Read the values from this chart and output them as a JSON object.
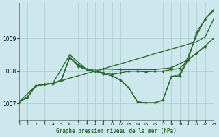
{
  "background_color": "#cce8ec",
  "grid_color": "#b0c8cc",
  "line_color": "#2d6a2d",
  "title": "Graphe pression niveau de la mer (hPa)",
  "xlim": [
    0,
    23
  ],
  "ylim": [
    1006.5,
    1010.1
  ],
  "yticks": [
    1007,
    1008,
    1009
  ],
  "xticks": [
    0,
    1,
    2,
    3,
    4,
    5,
    6,
    7,
    8,
    9,
    10,
    11,
    12,
    13,
    14,
    15,
    16,
    17,
    18,
    19,
    20,
    21,
    22,
    23
  ],
  "series": [
    {
      "x": [
        0,
        1,
        2,
        3,
        4,
        5,
        6,
        7,
        8,
        9,
        10,
        11,
        12,
        13,
        14,
        15,
        16,
        17,
        18,
        19,
        20,
        21,
        22,
        23
      ],
      "y": [
        1007.05,
        1007.18,
        1007.55,
        1007.6,
        1007.62,
        1007.7,
        1007.78,
        1007.85,
        1007.93,
        1008.0,
        1008.07,
        1008.15,
        1008.22,
        1008.3,
        1008.38,
        1008.45,
        1008.53,
        1008.6,
        1008.68,
        1008.75,
        1008.83,
        1008.9,
        1009.05,
        1009.6
      ],
      "marker": false,
      "linewidth": 1.0
    },
    {
      "x": [
        0,
        2,
        4,
        6,
        8,
        10,
        12,
        14,
        16,
        18,
        20,
        22
      ],
      "y": [
        1007.05,
        1007.55,
        1007.62,
        1008.5,
        1008.05,
        1008.07,
        1008.05,
        1008.05,
        1008.05,
        1008.1,
        1008.35,
        1008.75
      ],
      "marker": true,
      "linewidth": 1.0
    },
    {
      "x": [
        0,
        1,
        2,
        3,
        4,
        5,
        6,
        7,
        8,
        9,
        10,
        11,
        12,
        13,
        14,
        15,
        16,
        17,
        18,
        19,
        20,
        21,
        22,
        23
      ],
      "y": [
        1007.05,
        1007.2,
        1007.55,
        1007.6,
        1007.62,
        1007.72,
        1008.42,
        1008.2,
        1008.05,
        1008.0,
        1007.95,
        1007.9,
        1007.95,
        1008.0,
        1008.0,
        1007.98,
        1008.0,
        1008.0,
        1008.05,
        1008.08,
        1008.35,
        1008.55,
        1008.78,
        1009.0
      ],
      "marker": true,
      "linewidth": 1.0
    },
    {
      "x": [
        0,
        1,
        2,
        3,
        4,
        5,
        6,
        7,
        8,
        9,
        10,
        11,
        12,
        13,
        14,
        15,
        16,
        17,
        18,
        19,
        20,
        21,
        22,
        23
      ],
      "y": [
        1007.05,
        1007.2,
        1007.55,
        1007.6,
        1007.62,
        1007.72,
        1008.42,
        1008.15,
        1008.05,
        1008.0,
        1007.92,
        1007.85,
        1007.72,
        1007.48,
        1007.05,
        1007.02,
        1007.02,
        1007.1,
        1007.82,
        1007.85,
        1008.35,
        1009.2,
        1009.6,
        1009.85
      ],
      "marker": true,
      "linewidth": 1.0
    },
    {
      "x": [
        0,
        1,
        2,
        3,
        4,
        5,
        6,
        7,
        8,
        9,
        10,
        11,
        12,
        13,
        14,
        15,
        16,
        17,
        18,
        19,
        20,
        21,
        22,
        23
      ],
      "y": [
        1007.05,
        1007.2,
        1007.55,
        1007.6,
        1007.62,
        1007.72,
        1008.42,
        1008.15,
        1008.05,
        1008.0,
        1007.92,
        1007.85,
        1007.72,
        1007.48,
        1007.05,
        1007.02,
        1007.02,
        1007.1,
        1007.82,
        1007.9,
        1008.45,
        1009.1,
        1009.6,
        1009.9
      ],
      "marker": false,
      "linewidth": 1.0
    }
  ]
}
